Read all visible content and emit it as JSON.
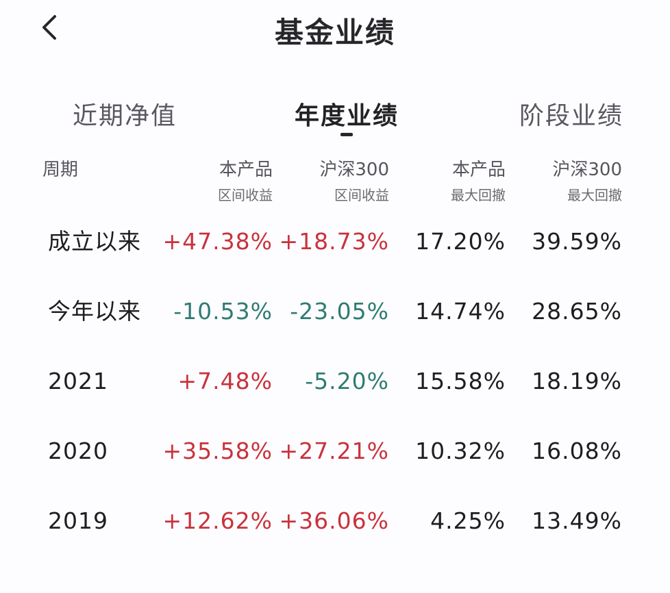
{
  "header": {
    "title": "基金业绩",
    "back_icon": "chevron-left-icon"
  },
  "tabs": [
    {
      "label": "近期净值",
      "active": false
    },
    {
      "label": "年度业绩",
      "active": true
    },
    {
      "label": "阶段业绩",
      "active": false
    }
  ],
  "table": {
    "columns": [
      {
        "line1": "周期",
        "line2": ""
      },
      {
        "line1": "本产品",
        "line2": "区间收益"
      },
      {
        "line1": "沪深300",
        "line2": "区间收益"
      },
      {
        "line1": "本产品",
        "line2": "最大回撤"
      },
      {
        "line1": "沪深300",
        "line2": "最大回撤"
      }
    ],
    "rows": [
      {
        "period": "成立以来",
        "product_return": "+47.38%",
        "index_return": "+18.73%",
        "product_drawdown": "17.20%",
        "index_drawdown": "39.59%",
        "product_sign": "pos",
        "index_sign": "pos"
      },
      {
        "period": "今年以来",
        "product_return": "-10.53%",
        "index_return": "-23.05%",
        "product_drawdown": "14.74%",
        "index_drawdown": "28.65%",
        "product_sign": "neg",
        "index_sign": "neg"
      },
      {
        "period": "2021",
        "product_return": "+7.48%",
        "index_return": "-5.20%",
        "product_drawdown": "15.58%",
        "index_drawdown": "18.19%",
        "product_sign": "pos",
        "index_sign": "neg"
      },
      {
        "period": "2020",
        "product_return": "+35.58%",
        "index_return": "+27.21%",
        "product_drawdown": "10.32%",
        "index_drawdown": "16.08%",
        "product_sign": "pos",
        "index_sign": "pos"
      },
      {
        "period": "2019",
        "product_return": "+12.62%",
        "index_return": "+36.06%",
        "product_drawdown": "4.25%",
        "index_drawdown": "13.49%",
        "product_sign": "pos",
        "index_sign": "pos"
      }
    ]
  },
  "colors": {
    "positive": "#c9323c",
    "negative": "#2f7b73",
    "text": "#1d1d22",
    "background": "#fdfdff"
  }
}
